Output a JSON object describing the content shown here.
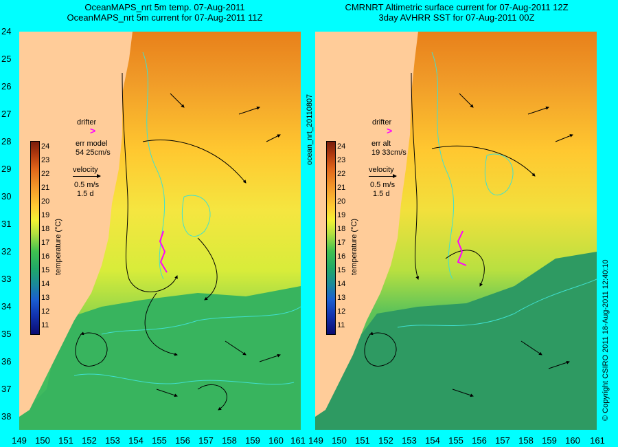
{
  "left_panel": {
    "title_line1": "OceanMAPS_nrt 5m temp. 07-Aug-2011",
    "title_line2": "OceanMAPS_nrt 5m current for 07-Aug-2011 11Z",
    "drifter_label": "drifter",
    "err_label": "err model",
    "err_value": "54 25cm/s",
    "velocity_label": "velocity",
    "velocity_scale": "0.5 m/s",
    "velocity_days": "1.5 d"
  },
  "right_panel": {
    "title_line1": "CMRNRT Altimetric surface current for 07-Aug-2011 12Z",
    "title_line2": "3day AVHRR SST for 07-Aug-2011 00Z",
    "drifter_label": "drifter",
    "err_label": "err alt",
    "err_value": "19 33cm/s",
    "velocity_label": "velocity",
    "velocity_scale": "0.5 m/s",
    "velocity_days": "1.5 d"
  },
  "side_label_center": "ocean_nrt_20110807",
  "side_label_right": "© Copyright CSIRO 2011   18-Aug-2011 12:40:10",
  "colorbar": {
    "title": "temperature (°C)",
    "labels": [
      "24",
      "23",
      "22",
      "21",
      "20",
      "19",
      "18",
      "17",
      "16",
      "15",
      "14",
      "13",
      "12",
      "11"
    ]
  },
  "y_ticks": [
    "24",
    "25",
    "26",
    "27",
    "28",
    "29",
    "30",
    "31",
    "32",
    "33",
    "34",
    "35",
    "36",
    "37",
    "38"
  ],
  "x_ticks": [
    "149",
    "150",
    "151",
    "152",
    "153",
    "154",
    "155",
    "156",
    "157",
    "158",
    "159",
    "160",
    "161"
  ],
  "colors": {
    "land": "#ffcc99",
    "background": "#00ffff",
    "drifter": "#ff00ff",
    "contour": "#40e0d0"
  }
}
